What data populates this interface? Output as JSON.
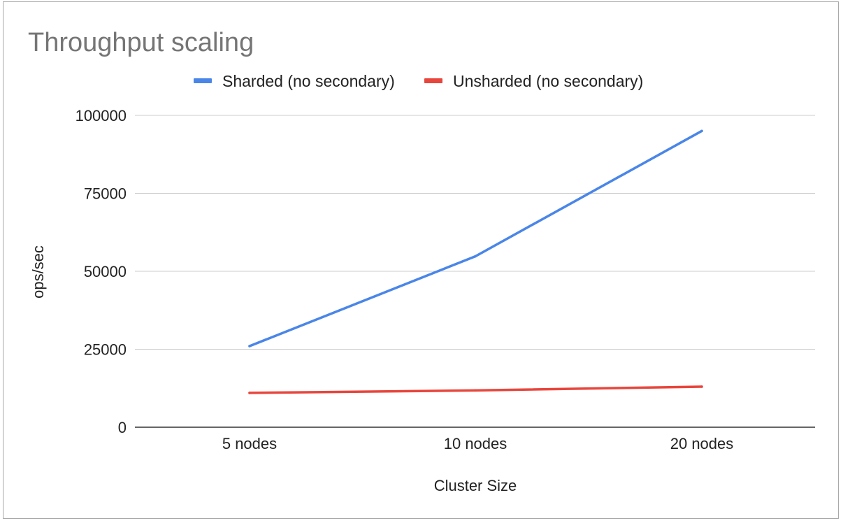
{
  "chart_data": {
    "type": "line",
    "title": "Throughput scaling",
    "xlabel": "Cluster Size",
    "ylabel": "ops/sec",
    "categories": [
      "5 nodes",
      "10 nodes",
      "20 nodes"
    ],
    "ylim": [
      0,
      100000
    ],
    "yticks": [
      0,
      25000,
      50000,
      75000,
      100000
    ],
    "ytick_labels": [
      "0",
      "25000",
      "50000",
      "75000",
      "100000"
    ],
    "grid": true,
    "legend_position": "top",
    "series": [
      {
        "name": "Sharded (no secondary)",
        "color": "#4a86e8",
        "values": [
          26000,
          54800,
          95000
        ]
      },
      {
        "name": "Unsharded (no secondary)",
        "color": "#e8453c",
        "values": [
          11000,
          11800,
          13000
        ]
      }
    ]
  }
}
